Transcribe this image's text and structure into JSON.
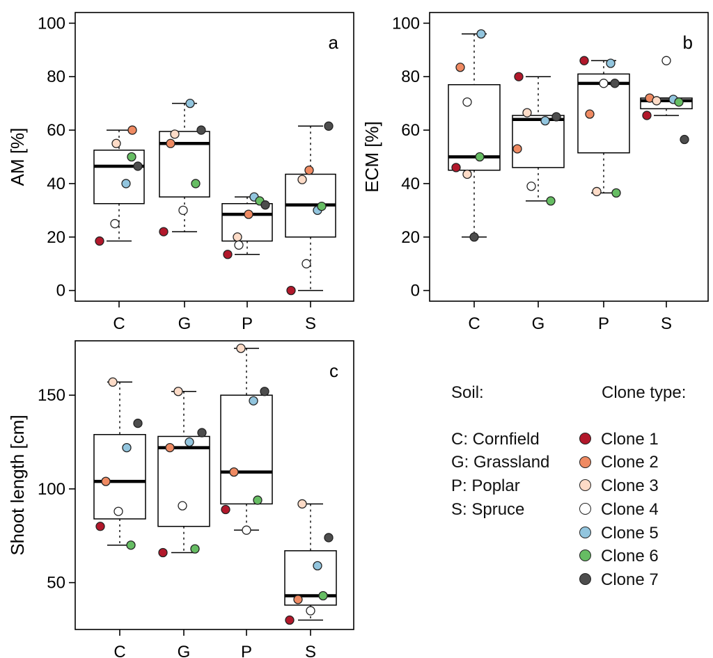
{
  "chart_data": [
    {
      "type": "box",
      "panel_label": "a",
      "ylabel": "AM [%]",
      "xlabel": "",
      "categories": [
        "C",
        "G",
        "P",
        "S"
      ],
      "ylim": [
        -4,
        104
      ],
      "yticks": [
        0,
        20,
        40,
        60,
        80,
        100
      ],
      "grid": false,
      "boxes": [
        {
          "category": "C",
          "whisker_low": 18.5,
          "q1": 32.5,
          "median": 46.5,
          "q3": 52.5,
          "whisker_high": 60
        },
        {
          "category": "G",
          "whisker_low": 22,
          "q1": 35,
          "median": 55,
          "q3": 59.5,
          "whisker_high": 70
        },
        {
          "category": "P",
          "whisker_low": 13.5,
          "q1": 18.5,
          "median": 28.5,
          "q3": 32.5,
          "whisker_high": 35
        },
        {
          "category": "S",
          "whisker_low": 0,
          "q1": 20,
          "median": 32,
          "q3": 43.5,
          "whisker_high": 61.5
        }
      ],
      "series": [
        {
          "name": "Clone 1",
          "values": [
            18.5,
            22,
            13.5,
            0
          ]
        },
        {
          "name": "Clone 2",
          "values": [
            60,
            55,
            28.5,
            45
          ]
        },
        {
          "name": "Clone 3",
          "values": [
            55,
            58.5,
            20,
            41.5
          ]
        },
        {
          "name": "Clone 4",
          "values": [
            25,
            30,
            17,
            10
          ]
        },
        {
          "name": "Clone 5",
          "values": [
            40,
            70,
            35,
            30
          ]
        },
        {
          "name": "Clone 6",
          "values": [
            50,
            40,
            33.5,
            31.5
          ]
        },
        {
          "name": "Clone 7",
          "values": [
            46.5,
            60,
            32,
            61.5
          ]
        }
      ]
    },
    {
      "type": "box",
      "panel_label": "b",
      "ylabel": "ECM [%]",
      "xlabel": "",
      "categories": [
        "C",
        "G",
        "P",
        "S"
      ],
      "ylim": [
        -4,
        104
      ],
      "yticks": [
        0,
        20,
        40,
        60,
        80,
        100
      ],
      "grid": false,
      "boxes": [
        {
          "category": "C",
          "whisker_low": 20,
          "q1": 45,
          "median": 50,
          "q3": 77,
          "whisker_high": 96
        },
        {
          "category": "G",
          "whisker_low": 33.5,
          "q1": 46,
          "median": 64,
          "q3": 65.5,
          "whisker_high": 80
        },
        {
          "category": "P",
          "whisker_low": 36.5,
          "q1": 51.5,
          "median": 77.5,
          "q3": 81,
          "whisker_high": 86
        },
        {
          "category": "S",
          "whisker_low": 65.5,
          "q1": 68,
          "median": 71,
          "q3": 72,
          "whisker_high": 72
        }
      ],
      "series": [
        {
          "name": "Clone 1",
          "values": [
            46,
            80,
            86,
            65.5
          ]
        },
        {
          "name": "Clone 2",
          "values": [
            83.5,
            53,
            66,
            72
          ]
        },
        {
          "name": "Clone 3",
          "values": [
            43.5,
            66.5,
            37,
            71
          ]
        },
        {
          "name": "Clone 4",
          "values": [
            70.5,
            39,
            77.5,
            86
          ]
        },
        {
          "name": "Clone 5",
          "values": [
            96,
            63.5,
            85,
            71.5
          ]
        },
        {
          "name": "Clone 6",
          "values": [
            50,
            33.5,
            36.5,
            70.5
          ]
        },
        {
          "name": "Clone 7",
          "values": [
            20,
            65,
            77.5,
            56.5
          ]
        }
      ]
    },
    {
      "type": "box",
      "panel_label": "c",
      "ylabel": "Shoot length [cm]",
      "xlabel": "",
      "categories": [
        "C",
        "G",
        "P",
        "S"
      ],
      "ylim": [
        25,
        179
      ],
      "yticks": [
        50,
        100,
        150
      ],
      "grid": false,
      "boxes": [
        {
          "category": "C",
          "whisker_low": 70,
          "q1": 84,
          "median": 104,
          "q3": 129,
          "whisker_high": 157
        },
        {
          "category": "G",
          "whisker_low": 66,
          "q1": 80,
          "median": 122,
          "q3": 128,
          "whisker_high": 152
        },
        {
          "category": "P",
          "whisker_low": 78,
          "q1": 92,
          "median": 109,
          "q3": 150,
          "whisker_high": 175
        },
        {
          "category": "S",
          "whisker_low": 30,
          "q1": 38,
          "median": 43,
          "q3": 67,
          "whisker_high": 92
        }
      ],
      "series": [
        {
          "name": "Clone 1",
          "values": [
            80,
            66,
            89,
            30
          ]
        },
        {
          "name": "Clone 2",
          "values": [
            104,
            122,
            109,
            41
          ]
        },
        {
          "name": "Clone 3",
          "values": [
            157,
            152,
            175,
            92
          ]
        },
        {
          "name": "Clone 4",
          "values": [
            88,
            91,
            78,
            35
          ]
        },
        {
          "name": "Clone 5",
          "values": [
            122,
            125,
            147,
            59
          ]
        },
        {
          "name": "Clone 6",
          "values": [
            70,
            68,
            94,
            43
          ]
        },
        {
          "name": "Clone 7",
          "values": [
            135,
            130,
            152,
            74
          ]
        }
      ]
    }
  ],
  "legend": {
    "soil_title": "Soil:",
    "soil_items": [
      "C: Cornfield",
      "G: Grassland",
      "P: Poplar",
      "S: Spruce"
    ],
    "clone_title": "Clone type:",
    "clone_items": [
      {
        "label": "Clone 1",
        "color": "#b2182b"
      },
      {
        "label": "Clone 2",
        "color": "#ef8a62"
      },
      {
        "label": "Clone 3",
        "color": "#fddbc7"
      },
      {
        "label": "Clone 4",
        "color": "#ffffff"
      },
      {
        "label": "Clone 5",
        "color": "#92c5de"
      },
      {
        "label": "Clone 6",
        "color": "#66bd63"
      },
      {
        "label": "Clone 7",
        "color": "#4d4d4d"
      }
    ]
  }
}
